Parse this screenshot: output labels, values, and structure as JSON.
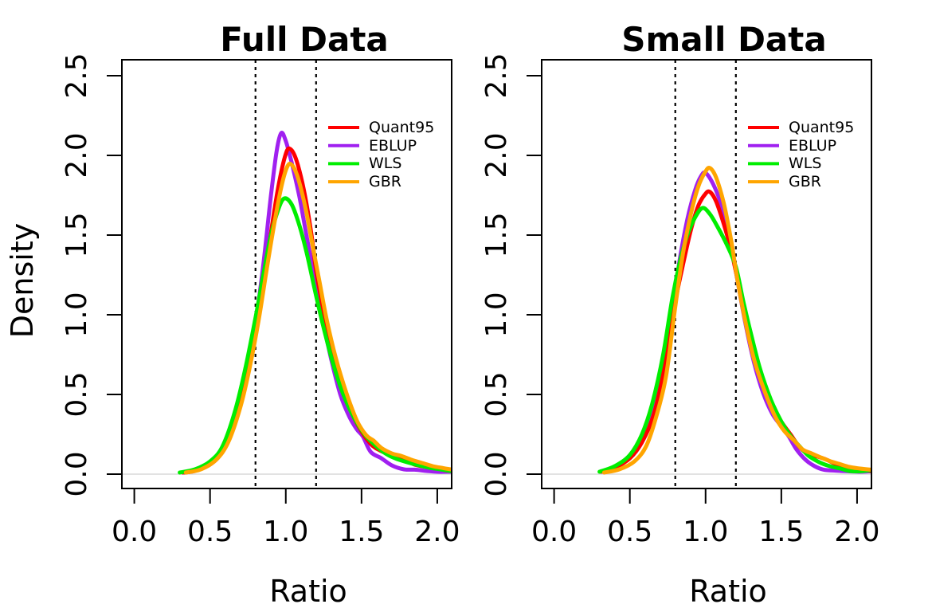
{
  "figure": {
    "background": "#ffffff",
    "y_axis_title": "Density"
  },
  "legend": {
    "items": [
      {
        "label": "Quant95",
        "color": "#FF0000"
      },
      {
        "label": "EBLUP",
        "color": "#A020F0"
      },
      {
        "label": "WLS",
        "color": "#00EE00"
      },
      {
        "label": "GBR",
        "color": "#FFA500"
      }
    ]
  },
  "chart_data": [
    {
      "type": "line",
      "title": "Full Data",
      "xlabel": "Ratio",
      "ylabel": "Density",
      "xlim": [
        0.0,
        2.1
      ],
      "ylim": [
        0.0,
        2.5
      ],
      "xticks": [
        "0.0",
        "0.5",
        "1.0",
        "1.5",
        "2.0"
      ],
      "yticks": [
        "0.0",
        "0.5",
        "1.0",
        "1.5",
        "2.0",
        "2.5"
      ],
      "vlines": [
        0.8,
        1.2
      ],
      "baseline": 0,
      "grid": false,
      "legend_position": "upper-right-inside",
      "series": [
        {
          "name": "Quant95",
          "color": "#FF0000",
          "points": [
            [
              0.32,
              0.01
            ],
            [
              0.4,
              0.02
            ],
            [
              0.5,
              0.06
            ],
            [
              0.58,
              0.14
            ],
            [
              0.66,
              0.32
            ],
            [
              0.74,
              0.62
            ],
            [
              0.8,
              0.88
            ],
            [
              0.85,
              1.16
            ],
            [
              0.9,
              1.5
            ],
            [
              0.95,
              1.8
            ],
            [
              1.0,
              2.01
            ],
            [
              1.03,
              2.04
            ],
            [
              1.07,
              1.97
            ],
            [
              1.12,
              1.78
            ],
            [
              1.17,
              1.5
            ],
            [
              1.2,
              1.28
            ],
            [
              1.25,
              1.02
            ],
            [
              1.3,
              0.79
            ],
            [
              1.36,
              0.57
            ],
            [
              1.42,
              0.42
            ],
            [
              1.48,
              0.3
            ],
            [
              1.56,
              0.19
            ],
            [
              1.63,
              0.145
            ],
            [
              1.7,
              0.12
            ],
            [
              1.77,
              0.095
            ],
            [
              1.85,
              0.06
            ],
            [
              1.93,
              0.045
            ],
            [
              2.0,
              0.035
            ],
            [
              2.05,
              0.025
            ],
            [
              2.09,
              0.02
            ]
          ]
        },
        {
          "name": "EBLUP",
          "color": "#A020F0",
          "points": [
            [
              0.33,
              0.01
            ],
            [
              0.42,
              0.03
            ],
            [
              0.52,
              0.08
            ],
            [
              0.6,
              0.18
            ],
            [
              0.68,
              0.4
            ],
            [
              0.75,
              0.68
            ],
            [
              0.8,
              0.95
            ],
            [
              0.85,
              1.3
            ],
            [
              0.9,
              1.73
            ],
            [
              0.94,
              2.03
            ],
            [
              0.97,
              2.14
            ],
            [
              1.0,
              2.09
            ],
            [
              1.04,
              1.95
            ],
            [
              1.09,
              1.74
            ],
            [
              1.14,
              1.48
            ],
            [
              1.2,
              1.18
            ],
            [
              1.25,
              0.94
            ],
            [
              1.3,
              0.72
            ],
            [
              1.36,
              0.5
            ],
            [
              1.42,
              0.36
            ],
            [
              1.47,
              0.28
            ],
            [
              1.51,
              0.235
            ],
            [
              1.56,
              0.14
            ],
            [
              1.63,
              0.1
            ],
            [
              1.7,
              0.055
            ],
            [
              1.78,
              0.03
            ],
            [
              1.85,
              0.028
            ],
            [
              1.93,
              0.02
            ],
            [
              2.0,
              0.015
            ],
            [
              2.09,
              0.015
            ]
          ]
        },
        {
          "name": "WLS",
          "color": "#00EE00",
          "points": [
            [
              0.3,
              0.01
            ],
            [
              0.4,
              0.03
            ],
            [
              0.5,
              0.08
            ],
            [
              0.58,
              0.17
            ],
            [
              0.66,
              0.38
            ],
            [
              0.73,
              0.65
            ],
            [
              0.8,
              0.98
            ],
            [
              0.85,
              1.24
            ],
            [
              0.9,
              1.49
            ],
            [
              0.95,
              1.66
            ],
            [
              0.99,
              1.73
            ],
            [
              1.04,
              1.69
            ],
            [
              1.09,
              1.56
            ],
            [
              1.14,
              1.38
            ],
            [
              1.2,
              1.12
            ],
            [
              1.26,
              0.88
            ],
            [
              1.32,
              0.67
            ],
            [
              1.38,
              0.5
            ],
            [
              1.45,
              0.355
            ],
            [
              1.52,
              0.25
            ],
            [
              1.58,
              0.19
            ],
            [
              1.65,
              0.135
            ],
            [
              1.72,
              0.1
            ],
            [
              1.8,
              0.075
            ],
            [
              1.88,
              0.055
            ],
            [
              1.95,
              0.04
            ],
            [
              2.02,
              0.03
            ],
            [
              2.09,
              0.02
            ]
          ]
        },
        {
          "name": "GBR",
          "color": "#FFA500",
          "points": [
            [
              0.34,
              0.01
            ],
            [
              0.44,
              0.03
            ],
            [
              0.54,
              0.09
            ],
            [
              0.62,
              0.2
            ],
            [
              0.7,
              0.42
            ],
            [
              0.76,
              0.66
            ],
            [
              0.82,
              0.96
            ],
            [
              0.87,
              1.26
            ],
            [
              0.92,
              1.55
            ],
            [
              0.97,
              1.8
            ],
            [
              1.01,
              1.93
            ],
            [
              1.04,
              1.94
            ],
            [
              1.08,
              1.86
            ],
            [
              1.13,
              1.67
            ],
            [
              1.18,
              1.42
            ],
            [
              1.22,
              1.22
            ],
            [
              1.27,
              0.97
            ],
            [
              1.33,
              0.73
            ],
            [
              1.4,
              0.51
            ],
            [
              1.47,
              0.335
            ],
            [
              1.53,
              0.245
            ],
            [
              1.58,
              0.21
            ],
            [
              1.63,
              0.165
            ],
            [
              1.7,
              0.13
            ],
            [
              1.76,
              0.115
            ],
            [
              1.83,
              0.09
            ],
            [
              1.9,
              0.07
            ],
            [
              1.97,
              0.05
            ],
            [
              2.04,
              0.038
            ],
            [
              2.09,
              0.03
            ]
          ]
        }
      ]
    },
    {
      "type": "line",
      "title": "Small Data",
      "xlabel": "Ratio",
      "ylabel": "Density",
      "xlim": [
        0.0,
        2.1
      ],
      "ylim": [
        0.0,
        2.5
      ],
      "xticks": [
        "0.0",
        "0.5",
        "1.0",
        "1.5",
        "2.0"
      ],
      "yticks": [
        "0.0",
        "0.5",
        "1.0",
        "1.5",
        "2.0",
        "2.5"
      ],
      "vlines": [
        0.8,
        1.2
      ],
      "baseline": 0,
      "grid": false,
      "legend_position": "upper-right-inside",
      "series": [
        {
          "name": "Quant95",
          "color": "#FF0000",
          "points": [
            [
              0.31,
              0.015
            ],
            [
              0.4,
              0.04
            ],
            [
              0.5,
              0.1
            ],
            [
              0.58,
              0.2
            ],
            [
              0.66,
              0.38
            ],
            [
              0.73,
              0.68
            ],
            [
              0.8,
              1.08
            ],
            [
              0.85,
              1.31
            ],
            [
              0.9,
              1.52
            ],
            [
              0.95,
              1.68
            ],
            [
              1.0,
              1.76
            ],
            [
              1.03,
              1.77
            ],
            [
              1.07,
              1.71
            ],
            [
              1.12,
              1.57
            ],
            [
              1.17,
              1.4
            ],
            [
              1.2,
              1.27
            ],
            [
              1.26,
              1.0
            ],
            [
              1.32,
              0.76
            ],
            [
              1.38,
              0.57
            ],
            [
              1.44,
              0.44
            ],
            [
              1.5,
              0.33
            ],
            [
              1.56,
              0.25
            ],
            [
              1.62,
              0.17
            ],
            [
              1.68,
              0.125
            ],
            [
              1.74,
              0.11
            ],
            [
              1.8,
              0.09
            ],
            [
              1.87,
              0.06
            ],
            [
              1.94,
              0.045
            ],
            [
              2.0,
              0.03
            ],
            [
              2.09,
              0.02
            ]
          ]
        },
        {
          "name": "EBLUP",
          "color": "#A020F0",
          "points": [
            [
              0.32,
              0.015
            ],
            [
              0.42,
              0.05
            ],
            [
              0.52,
              0.12
            ],
            [
              0.6,
              0.25
            ],
            [
              0.66,
              0.42
            ],
            [
              0.72,
              0.66
            ],
            [
              0.78,
              1.02
            ],
            [
              0.83,
              1.35
            ],
            [
              0.88,
              1.6
            ],
            [
              0.93,
              1.78
            ],
            [
              0.97,
              1.87
            ],
            [
              1.0,
              1.89
            ],
            [
              1.05,
              1.82
            ],
            [
              1.1,
              1.7
            ],
            [
              1.15,
              1.52
            ],
            [
              1.2,
              1.27
            ],
            [
              1.26,
              0.96
            ],
            [
              1.32,
              0.7
            ],
            [
              1.38,
              0.51
            ],
            [
              1.44,
              0.38
            ],
            [
              1.5,
              0.3
            ],
            [
              1.55,
              0.235
            ],
            [
              1.6,
              0.155
            ],
            [
              1.66,
              0.09
            ],
            [
              1.72,
              0.05
            ],
            [
              1.78,
              0.028
            ],
            [
              1.86,
              0.022
            ],
            [
              1.94,
              0.018
            ],
            [
              2.02,
              0.015
            ],
            [
              2.09,
              0.018
            ]
          ]
        },
        {
          "name": "WLS",
          "color": "#00EE00",
          "points": [
            [
              0.3,
              0.015
            ],
            [
              0.4,
              0.05
            ],
            [
              0.5,
              0.12
            ],
            [
              0.58,
              0.25
            ],
            [
              0.65,
              0.45
            ],
            [
              0.72,
              0.75
            ],
            [
              0.78,
              1.1
            ],
            [
              0.83,
              1.33
            ],
            [
              0.88,
              1.5
            ],
            [
              0.93,
              1.61
            ],
            [
              0.98,
              1.67
            ],
            [
              1.03,
              1.63
            ],
            [
              1.08,
              1.55
            ],
            [
              1.14,
              1.44
            ],
            [
              1.2,
              1.3
            ],
            [
              1.25,
              1.08
            ],
            [
              1.3,
              0.88
            ],
            [
              1.36,
              0.66
            ],
            [
              1.43,
              0.47
            ],
            [
              1.5,
              0.33
            ],
            [
              1.56,
              0.24
            ],
            [
              1.62,
              0.175
            ],
            [
              1.68,
              0.115
            ],
            [
              1.75,
              0.075
            ],
            [
              1.82,
              0.05
            ],
            [
              1.89,
              0.035
            ],
            [
              1.95,
              0.02
            ],
            [
              2.02,
              0.018
            ],
            [
              2.09,
              0.025
            ]
          ]
        },
        {
          "name": "GBR",
          "color": "#FFA500",
          "points": [
            [
              0.33,
              0.01
            ],
            [
              0.43,
              0.03
            ],
            [
              0.53,
              0.08
            ],
            [
              0.61,
              0.18
            ],
            [
              0.68,
              0.38
            ],
            [
              0.74,
              0.62
            ],
            [
              0.8,
              1.05
            ],
            [
              0.85,
              1.38
            ],
            [
              0.9,
              1.62
            ],
            [
              0.95,
              1.8
            ],
            [
              1.0,
              1.9
            ],
            [
              1.03,
              1.92
            ],
            [
              1.07,
              1.86
            ],
            [
              1.12,
              1.7
            ],
            [
              1.17,
              1.46
            ],
            [
              1.21,
              1.22
            ],
            [
              1.26,
              0.97
            ],
            [
              1.32,
              0.72
            ],
            [
              1.39,
              0.52
            ],
            [
              1.46,
              0.36
            ],
            [
              1.52,
              0.27
            ],
            [
              1.58,
              0.215
            ],
            [
              1.64,
              0.155
            ],
            [
              1.7,
              0.13
            ],
            [
              1.76,
              0.105
            ],
            [
              1.82,
              0.082
            ],
            [
              1.88,
              0.065
            ],
            [
              1.95,
              0.045
            ],
            [
              2.02,
              0.035
            ],
            [
              2.09,
              0.028
            ]
          ]
        }
      ]
    }
  ]
}
